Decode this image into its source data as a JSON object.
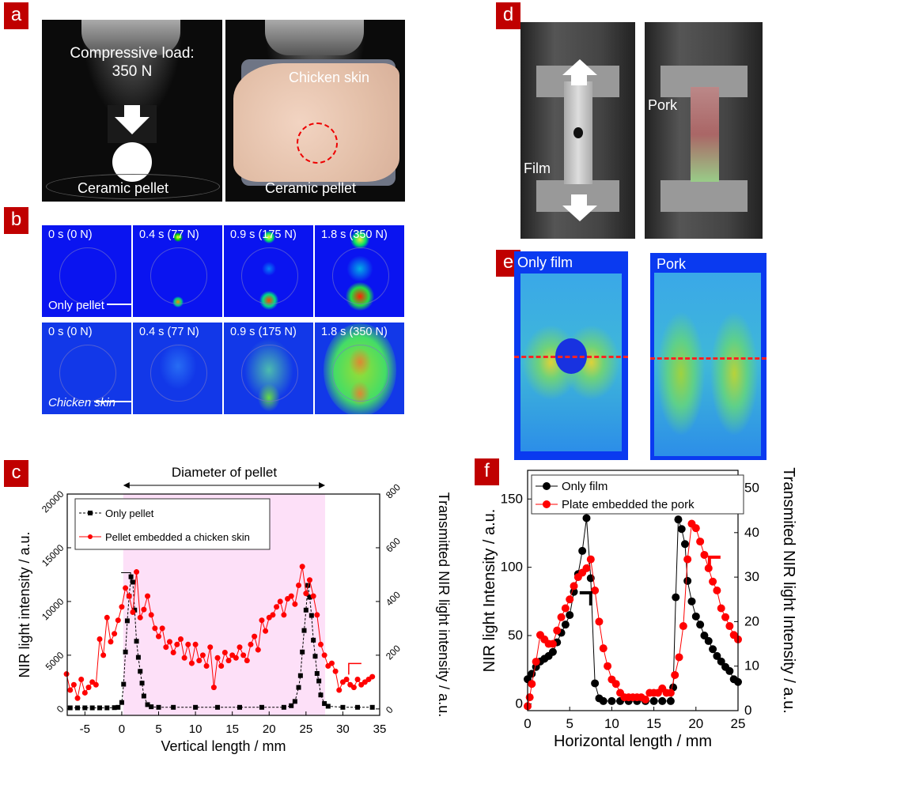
{
  "panels": {
    "a": "a",
    "b": "b",
    "c": "c",
    "d": "d",
    "e": "e",
    "f": "f"
  },
  "a": {
    "load_label": "Compressive load:",
    "load_value": "350 N",
    "pellet_label": "Ceramic pellet",
    "skin_label": "Chicken skin",
    "pellet_label2": "Ceramic pellet"
  },
  "b": {
    "times": [
      "0 s (0 N)",
      "0.4 s (77 N)",
      "0.9 s (175 N)",
      "1.8 s (350 N)"
    ],
    "row1_label": "Only pellet",
    "row2_label": "Chicken skin"
  },
  "d": {
    "film_label": "Film",
    "pork_label": "Pork"
  },
  "e": {
    "left_label": "Only film",
    "right_label": "Pork"
  },
  "colors": {
    "label_bg": "#c00000",
    "series_black": "#000000",
    "series_red": "#ff0000",
    "highlight": "#fde0f8",
    "nir_bg": "#0a14f0"
  },
  "chart_data": [
    {
      "type": "scatter",
      "id": "c",
      "annotation": "Diameter of pellet",
      "xlabel": "Vertical length / mm",
      "ylabel": "NIR light intensity / a.u.",
      "ylabel_right": "Transmitted NIR light intensity / a.u.",
      "xlim": [
        -7.4,
        35
      ],
      "ylim": [
        -600,
        20000
      ],
      "ylim_right": [
        -24,
        800
      ],
      "xticks": [
        -5,
        0,
        5,
        10,
        15,
        20,
        25,
        30,
        35
      ],
      "yticks": [
        0,
        5000,
        10000,
        15000,
        20000
      ],
      "yticks_right": [
        0,
        200,
        400,
        600,
        800
      ],
      "highlight_x": [
        0.2,
        27.6
      ],
      "legend": "top-left",
      "grid": false,
      "series": [
        {
          "name": "Only pellet",
          "axis": "left",
          "color": "#000000",
          "marker": "square",
          "line": "dashed",
          "x": [
            -7,
            -6,
            -5,
            -4,
            -3,
            -2,
            -1,
            -0.5,
            0,
            0.25,
            0.5,
            0.75,
            1,
            1.25,
            1.5,
            1.75,
            2,
            2.25,
            2.5,
            2.75,
            3,
            3.5,
            4,
            5,
            7,
            10,
            13,
            16,
            19,
            22,
            23,
            23.5,
            24,
            24.25,
            24.5,
            24.75,
            25,
            25.25,
            25.5,
            25.75,
            26,
            26.25,
            26.5,
            26.75,
            27,
            27.5,
            28,
            30,
            32,
            34
          ],
          "y": [
            100,
            100,
            100,
            100,
            100,
            100,
            120,
            150,
            600,
            2300,
            5300,
            8200,
            10500,
            12300,
            11800,
            9200,
            6300,
            4800,
            3500,
            2400,
            1200,
            400,
            200,
            150,
            150,
            150,
            150,
            150,
            150,
            150,
            300,
            700,
            2000,
            3100,
            5300,
            7300,
            9200,
            11500,
            10400,
            8700,
            6400,
            4900,
            3300,
            2600,
            1300,
            500,
            250,
            150,
            150,
            150
          ]
        },
        {
          "name": "Pellet embedded a chicken skin",
          "axis": "right",
          "color": "#ff0000",
          "marker": "circle",
          "line": "solid",
          "x": [
            -7.5,
            -7,
            -6.5,
            -6,
            -5.5,
            -5,
            -4.5,
            -4,
            -3.5,
            -3,
            -2.5,
            -2,
            -1.5,
            -1,
            -0.5,
            0,
            0.5,
            1,
            1.5,
            2,
            2.5,
            3,
            3.5,
            4,
            4.5,
            5,
            5.5,
            6,
            6.5,
            7,
            7.5,
            8,
            8.5,
            9,
            9.5,
            10,
            10.5,
            11,
            11.5,
            12,
            12.5,
            13,
            13.5,
            14,
            14.5,
            15,
            15.5,
            16,
            16.5,
            17,
            17.5,
            18,
            18.5,
            19,
            19.5,
            20,
            20.5,
            21,
            21.5,
            22,
            22.5,
            23,
            23.5,
            24,
            24.5,
            25,
            25.5,
            26,
            26.5,
            27,
            27.5,
            28,
            28.5,
            29,
            29.5,
            30,
            30.5,
            31,
            31.5,
            32,
            32.5,
            33,
            33.5,
            34
          ],
          "y": [
            130,
            70,
            90,
            40,
            110,
            60,
            80,
            100,
            90,
            260,
            200,
            340,
            250,
            280,
            330,
            380,
            450,
            420,
            360,
            510,
            340,
            370,
            420,
            350,
            300,
            270,
            300,
            230,
            250,
            210,
            240,
            260,
            190,
            240,
            170,
            240,
            180,
            200,
            160,
            230,
            80,
            190,
            160,
            210,
            180,
            200,
            190,
            230,
            200,
            180,
            240,
            270,
            220,
            330,
            290,
            340,
            350,
            380,
            400,
            350,
            410,
            420,
            390,
            460,
            530,
            430,
            480,
            420,
            350,
            240,
            200,
            160,
            170,
            140,
            70,
            100,
            110,
            90,
            80,
            110,
            90,
            100,
            110,
            120
          ]
        }
      ]
    },
    {
      "type": "scatter",
      "id": "f",
      "xlabel": "Horizontal length / mm",
      "ylabel": "NIR light Intensity / a.u.",
      "ylabel_right": "Transmited NIR light Intensity / a.u.",
      "xlim": [
        0,
        25
      ],
      "ylim": [
        -5,
        171
      ],
      "ylim_right": [
        0,
        54
      ],
      "xticks": [
        0,
        5,
        10,
        15,
        20,
        25
      ],
      "yticks": [
        0,
        50,
        100,
        150
      ],
      "yticks_right": [
        0,
        10,
        20,
        30,
        40,
        50
      ],
      "legend": "top",
      "grid": false,
      "series": [
        {
          "name": "Only film",
          "axis": "left",
          "color": "#000000",
          "marker": "circle",
          "line": "solid",
          "x": [
            0,
            0.5,
            1,
            1.5,
            2,
            2.5,
            3,
            3.5,
            4,
            4.5,
            5,
            5.5,
            6,
            6.5,
            7,
            7.5,
            8,
            8.5,
            9,
            10,
            11,
            12,
            13,
            14,
            15,
            16,
            17,
            17.3,
            17.6,
            17.9,
            18.3,
            18.7,
            19,
            19.5,
            20,
            20.5,
            21,
            21.5,
            22,
            22.5,
            23,
            23.5,
            24,
            24.5,
            25
          ],
          "y": [
            18,
            22,
            27,
            31,
            33,
            35,
            38,
            45,
            52,
            58,
            65,
            82,
            95,
            112,
            136,
            92,
            15,
            4,
            2,
            2,
            2,
            2,
            2,
            2,
            2,
            2,
            2,
            12,
            78,
            135,
            128,
            117,
            90,
            75,
            64,
            58,
            50,
            46,
            40,
            35,
            31,
            27,
            24,
            18,
            16
          ]
        },
        {
          "name": "Plate embedded the pork",
          "axis": "right",
          "color": "#ff0000",
          "marker": "circle",
          "line": "solid",
          "x": [
            0,
            0.25,
            0.5,
            1,
            1.5,
            2,
            2.5,
            3,
            3.5,
            4,
            4.5,
            5,
            5.5,
            6,
            6.5,
            7,
            7.5,
            8,
            8.5,
            9,
            9.5,
            10,
            10.5,
            11,
            11.5,
            12,
            12.5,
            13,
            13.5,
            14,
            14.5,
            15,
            15.5,
            16,
            16.5,
            17,
            17.5,
            18,
            18.5,
            19,
            19.5,
            20,
            20.5,
            21,
            21.5,
            22,
            22.5,
            23,
            23.5,
            24,
            24.5,
            25
          ],
          "y": [
            1,
            3,
            6,
            11,
            17,
            16,
            15,
            15,
            18,
            21,
            23,
            25,
            28,
            30,
            31,
            32,
            34,
            27,
            20,
            14,
            10,
            7,
            6,
            4,
            3,
            3,
            3,
            3,
            3,
            2.5,
            4,
            4,
            4,
            5,
            4,
            4,
            8,
            12,
            19,
            34,
            42,
            41,
            38,
            35,
            32,
            29,
            27,
            23,
            21,
            19,
            17,
            16
          ]
        }
      ]
    }
  ]
}
